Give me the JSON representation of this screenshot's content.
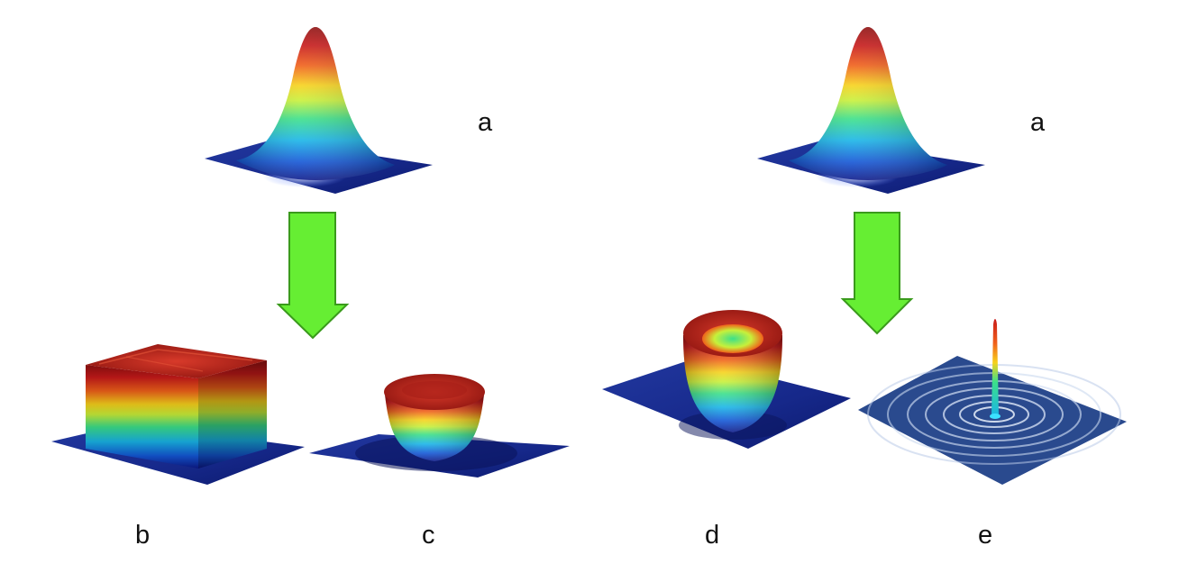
{
  "colors": {
    "spectrum": [
      "#0d1a8a",
      "#1457d6",
      "#19b5e8",
      "#3ce08a",
      "#c8f03a",
      "#f7d21c",
      "#f0601a",
      "#c81a1a",
      "#8f1010"
    ],
    "base_plate": "#1b2f9e",
    "arrow_fill": "#66ee33",
    "arrow_stroke": "#3a9a1c",
    "label_text": "#111111"
  },
  "left_panel": {
    "input_label": "a",
    "outputs": [
      {
        "label": "b",
        "shape": "flat-top square beam"
      },
      {
        "label": "c",
        "shape": "flat-top round beam"
      }
    ]
  },
  "right_panel": {
    "input_label": "a",
    "outputs": [
      {
        "label": "d",
        "shape": "ring (donut) beam"
      },
      {
        "label": "e",
        "shape": "Bessel beam with concentric rings"
      }
    ]
  },
  "icons": {
    "transform_arrow": "down-arrow-icon",
    "input_profile": "gaussian-beam-icon"
  }
}
